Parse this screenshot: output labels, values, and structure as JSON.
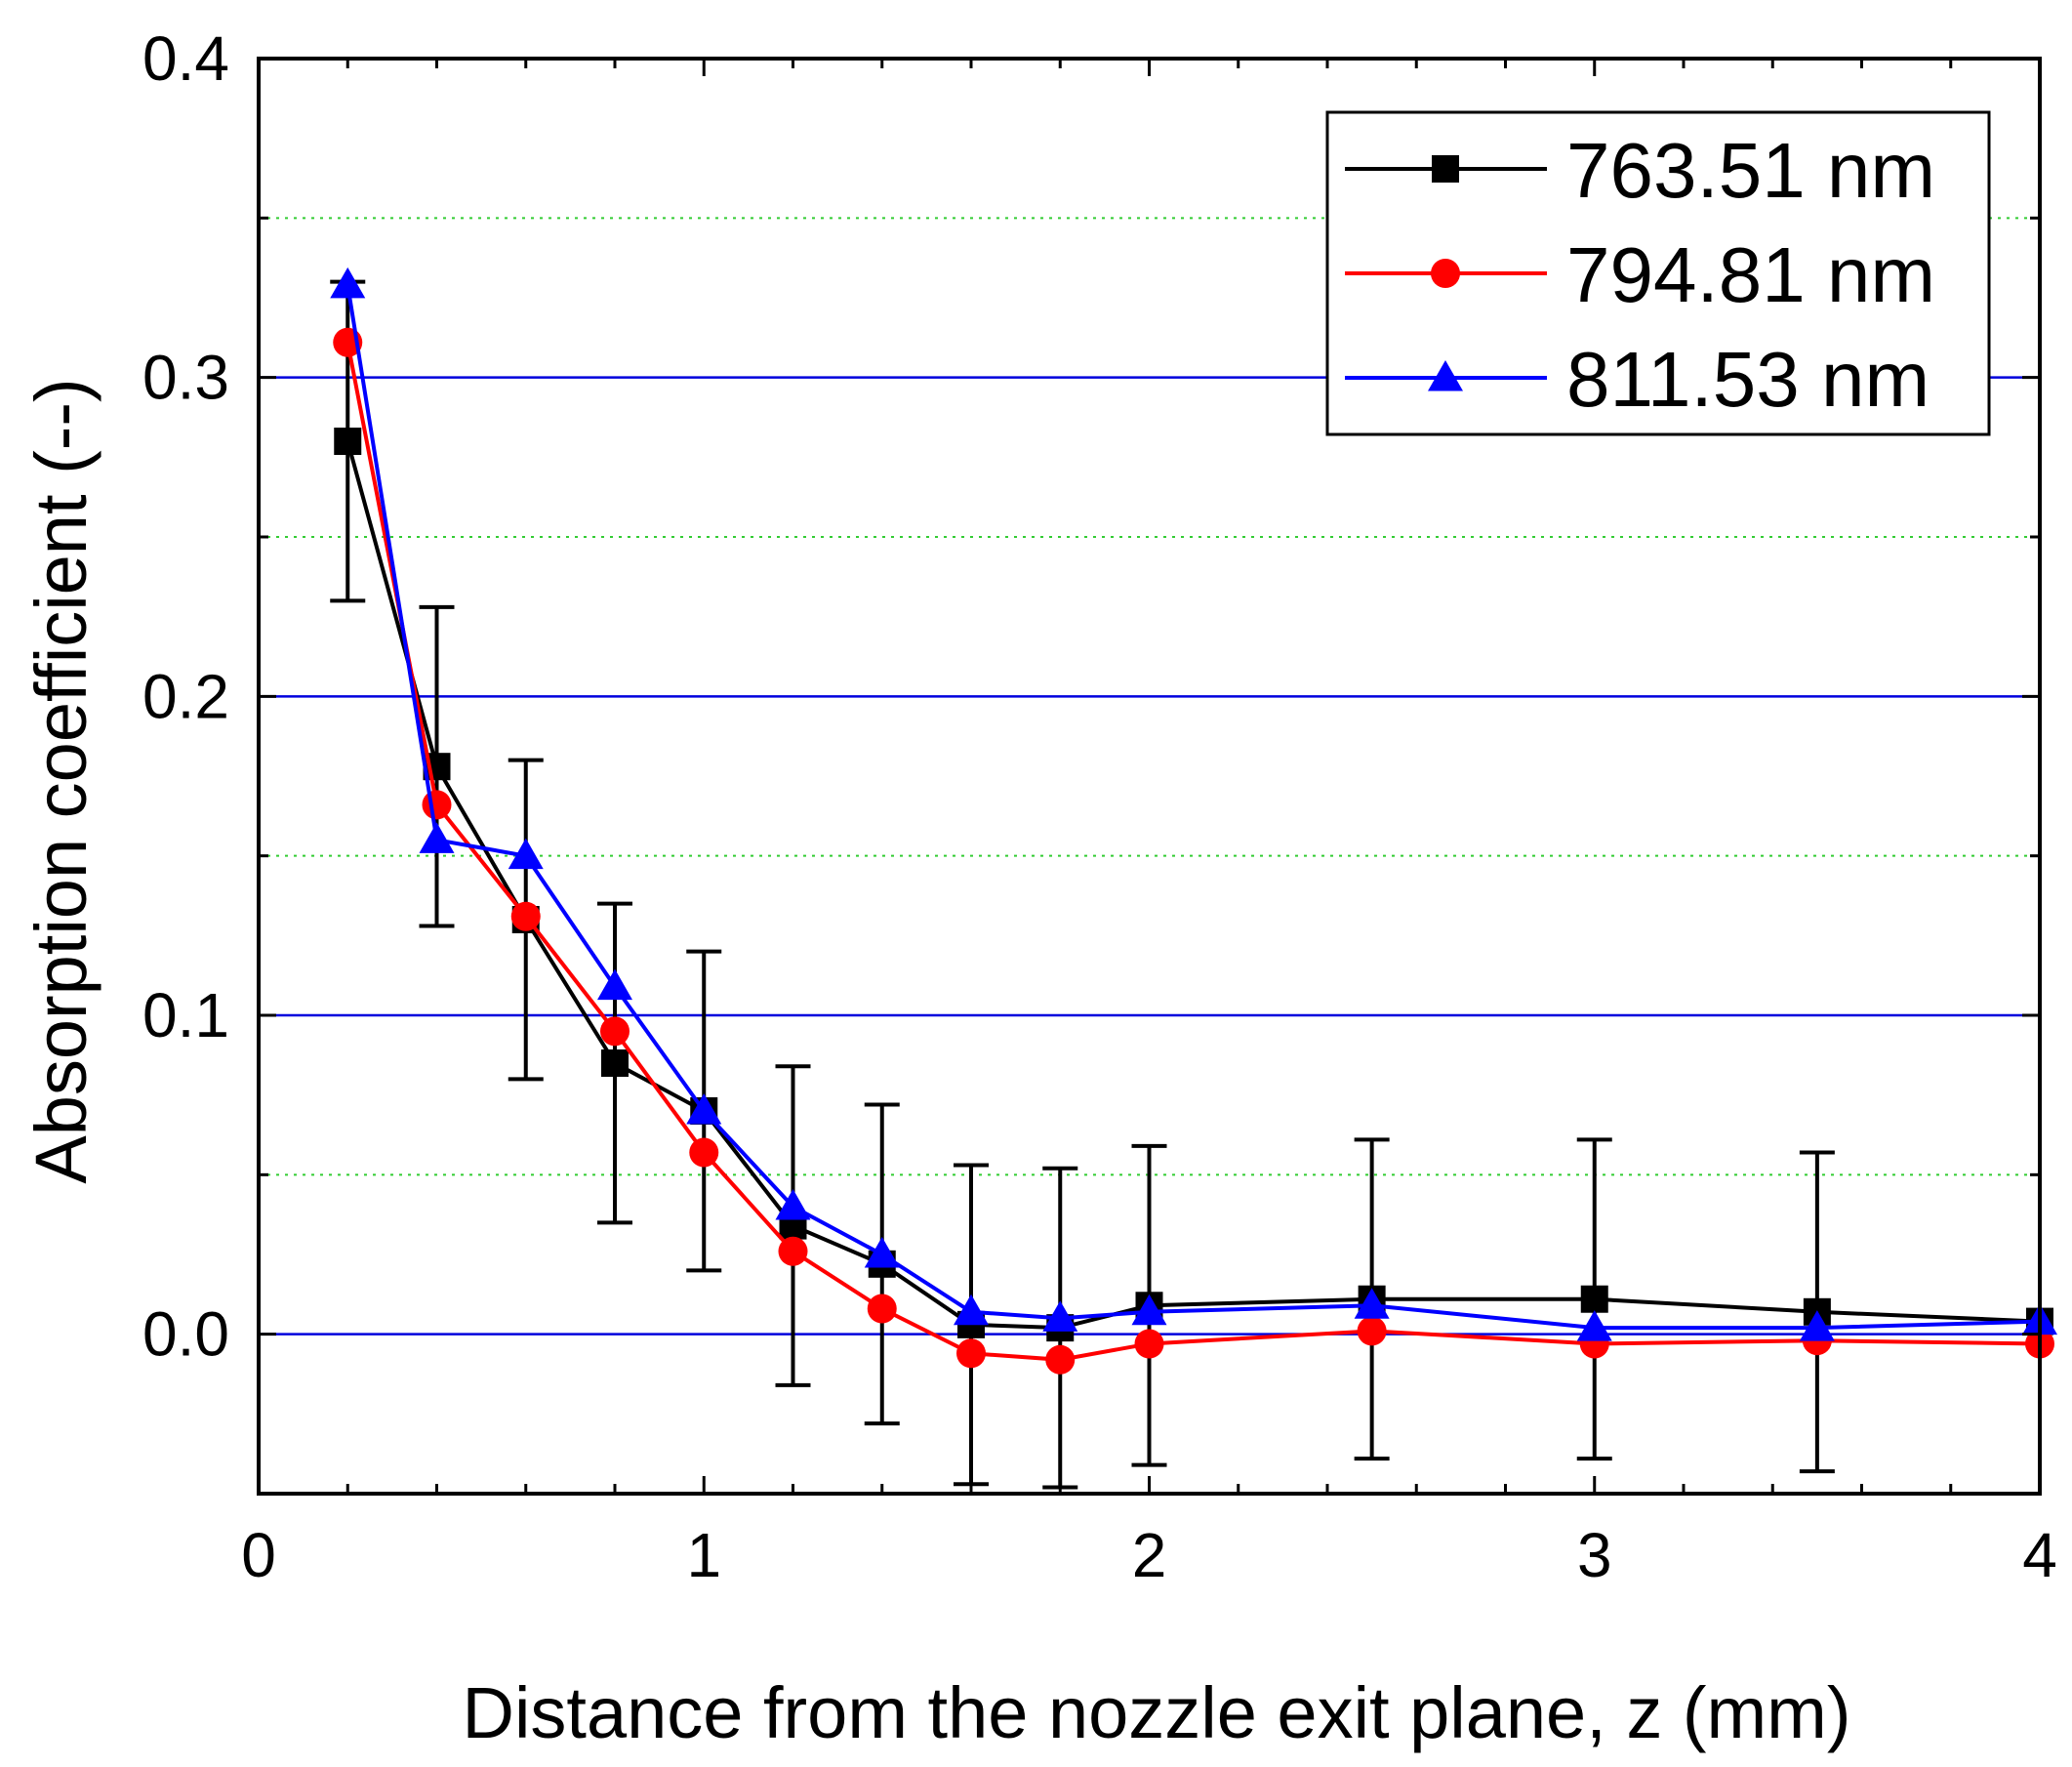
{
  "chart_data": {
    "type": "line",
    "xlabel": "Distance from the nozzle exit plane, z (mm)",
    "ylabel": "Absorption coefficient (--)",
    "xlim": [
      0,
      4
    ],
    "ylim": [
      -0.05,
      0.4
    ],
    "xticks": [
      0,
      1,
      2,
      3,
      4
    ],
    "xtick_labels": [
      "0",
      "1",
      "2",
      "3",
      "4"
    ],
    "yticks": [
      0.0,
      0.1,
      0.2,
      0.3,
      0.4
    ],
    "ytick_labels": [
      "0.0",
      "0.1",
      "0.2",
      "0.3",
      "0.4"
    ],
    "major_grid_y": [
      0.0,
      0.1,
      0.2,
      0.3
    ],
    "minor_grid_y": [
      0.05,
      0.15,
      0.25,
      0.35
    ],
    "grid": "horizontal only; solid blue at major ticks, dotted green at minor ticks",
    "legend_position": "top-right",
    "x": [
      0.2,
      0.4,
      0.6,
      0.8,
      1.0,
      1.2,
      1.4,
      1.6,
      1.8,
      2.0,
      2.5,
      3.0,
      3.5,
      4.0
    ],
    "series": [
      {
        "name": "763.51 nm",
        "color": "#000000",
        "marker": "square",
        "values": [
          0.28,
          0.178,
          0.13,
          0.085,
          0.07,
          0.034,
          0.022,
          0.003,
          0.002,
          0.009,
          0.011,
          0.011,
          0.007,
          0.004
        ],
        "error": [
          0.05,
          0.05,
          0.05,
          0.05,
          0.05,
          0.05,
          0.05,
          0.05,
          0.05,
          0.05,
          0.05,
          0.05,
          0.05,
          0.0
        ]
      },
      {
        "name": "794.81 nm",
        "color": "#ff0000",
        "marker": "circle",
        "values": [
          0.311,
          0.166,
          0.131,
          0.095,
          0.057,
          0.026,
          0.008,
          -0.006,
          -0.008,
          -0.003,
          0.001,
          -0.003,
          -0.002,
          -0.003
        ]
      },
      {
        "name": "811.53 nm",
        "color": "#0000ff",
        "marker": "triangle",
        "values": [
          0.329,
          0.155,
          0.15,
          0.109,
          0.07,
          0.04,
          0.025,
          0.007,
          0.005,
          0.007,
          0.009,
          0.002,
          0.002,
          0.004
        ]
      }
    ]
  }
}
